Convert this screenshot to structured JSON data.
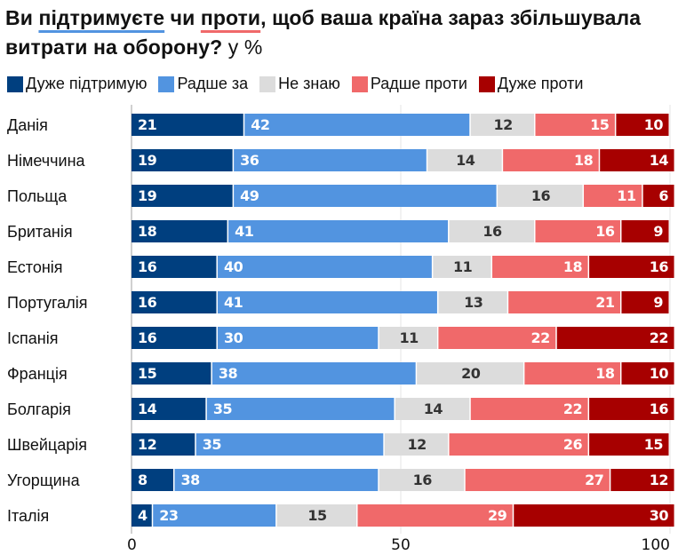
{
  "title": {
    "part1": "Ви ",
    "highlight_support": "підтримуєте",
    "part2": " чи ",
    "highlight_oppose": "проти",
    "part3": ", щоб ваша країна зараз збільшувала витрати на оборону?",
    "unit": " у %"
  },
  "colors": {
    "strongly_support": "#003f7f",
    "somewhat_support": "#5294e0",
    "dont_know": "#dcdcdc",
    "somewhat_oppose": "#f0696a",
    "strongly_oppose": "#a70000",
    "label_light": "#ffffff",
    "label_dark": "#333333",
    "grid": "#e6e6e6"
  },
  "chart_data": {
    "type": "bar",
    "orientation": "horizontal",
    "stacked": true,
    "title": "Ви підтримуєте чи проти, щоб ваша країна зараз збільшувала витрати на оборону? у %",
    "xlabel": "",
    "ylabel": "",
    "xlim": [
      0,
      100
    ],
    "xticks": [
      0,
      50,
      100
    ],
    "tick_labels": [
      "0",
      "50",
      "100"
    ],
    "grid": true,
    "legend_position": "top-left",
    "categories": [
      "Данія",
      "Німеччина",
      "Польща",
      "Британія",
      "Естонія",
      "Португалія",
      "Іспанія",
      "Франція",
      "Болгарія",
      "Швейцарія",
      "Угорщина",
      "Італія"
    ],
    "series": [
      {
        "name": "Дуже підтримую",
        "color_key": "strongly_support",
        "values": [
          21,
          19,
          19,
          18,
          16,
          16,
          16,
          15,
          14,
          12,
          8,
          4
        ]
      },
      {
        "name": "Радше за",
        "color_key": "somewhat_support",
        "values": [
          42,
          36,
          49,
          41,
          40,
          41,
          30,
          38,
          35,
          35,
          38,
          23
        ]
      },
      {
        "name": "Не знаю",
        "color_key": "dont_know",
        "values": [
          12,
          14,
          16,
          16,
          11,
          13,
          11,
          20,
          14,
          12,
          16,
          15
        ]
      },
      {
        "name": "Радше проти",
        "color_key": "somewhat_oppose",
        "values": [
          15,
          18,
          11,
          16,
          18,
          21,
          22,
          18,
          22,
          26,
          27,
          29
        ]
      },
      {
        "name": "Дуже проти",
        "color_key": "strongly_oppose",
        "values": [
          10,
          14,
          6,
          9,
          16,
          9,
          22,
          10,
          16,
          15,
          12,
          30
        ]
      }
    ]
  }
}
